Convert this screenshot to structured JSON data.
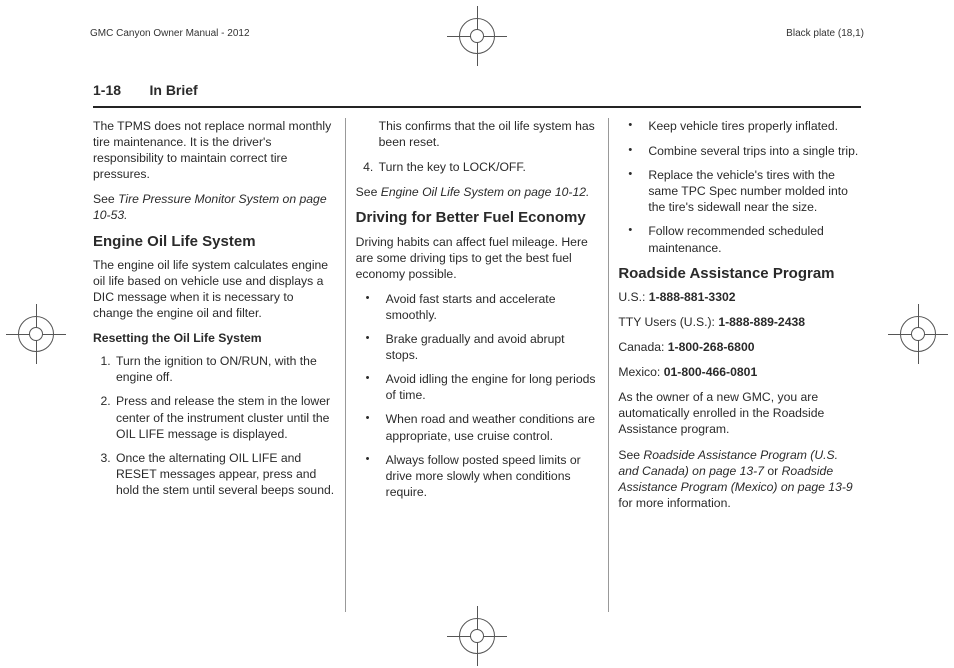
{
  "header": {
    "manual_title": "GMC Canyon Owner Manual - 2012",
    "plate_label": "Black plate (18,1)"
  },
  "page": {
    "number": "1-18",
    "section": "In Brief"
  },
  "col1": {
    "tpms_para": "The TPMS does not replace normal monthly tire maintenance. It is the driver's responsibility to maintain correct tire pressures.",
    "tpms_see_pre": "See ",
    "tpms_see_ref": "Tire Pressure Monitor System on page 10-53.",
    "h_engine": "Engine Oil Life System",
    "engine_para": "The engine oil life system calculates engine oil life based on vehicle use and displays a DIC message when it is necessary to change the engine oil and filter.",
    "h_reset": "Resetting the Oil Life System",
    "reset_steps": [
      "Turn the ignition to ON/RUN, with the engine off.",
      "Press and release the stem in the lower center of the instrument cluster until the OIL LIFE message is displayed.",
      "Once the alternating OIL LIFE and RESET messages appear, press and hold the stem until several beeps sound. This confirms that the oil life system has been reset."
    ]
  },
  "col2": {
    "step4": "Turn the key to LOCK/OFF.",
    "engine_see_pre": "See ",
    "engine_see_ref": "Engine Oil Life System on page 10-12.",
    "h_driving": "Driving for Better Fuel Economy",
    "driving_para": "Driving habits can affect fuel mileage. Here are some driving tips to get the best fuel economy possible.",
    "tips": [
      "Avoid fast starts and accelerate smoothly.",
      "Brake gradually and avoid abrupt stops.",
      "Avoid idling the engine for long periods of time.",
      "When road and weather conditions are appropriate, use cruise control.",
      "Always follow posted speed limits or drive more slowly when conditions require.",
      "Keep vehicle tires properly inflated."
    ]
  },
  "col3": {
    "tips2": [
      "Combine several trips into a single trip.",
      "Replace the vehicle's tires with the same TPC Spec number molded into the tire's sidewall near the size.",
      "Follow recommended scheduled maintenance."
    ],
    "h_roadside": "Roadside Assistance Program",
    "us_label": "U.S.: ",
    "us_phone": "1-888-881-3302",
    "tty_label": "TTY Users (U.S.): ",
    "tty_phone": "1-888-889-2438",
    "ca_label": "Canada: ",
    "ca_phone": "1-800-268-6800",
    "mx_label": "Mexico: ",
    "mx_phone": "01-800-466-0801",
    "enroll_para": "As the owner of a new GMC, you are automatically enrolled in the Roadside Assistance program.",
    "see_pre": "See ",
    "see_ref1": "Roadside Assistance Program (U.S. and Canada) on page 13-7",
    "see_or": " or ",
    "see_ref2": "Roadside Assistance Program (Mexico) on page 13-9",
    "see_post": " for more information."
  }
}
